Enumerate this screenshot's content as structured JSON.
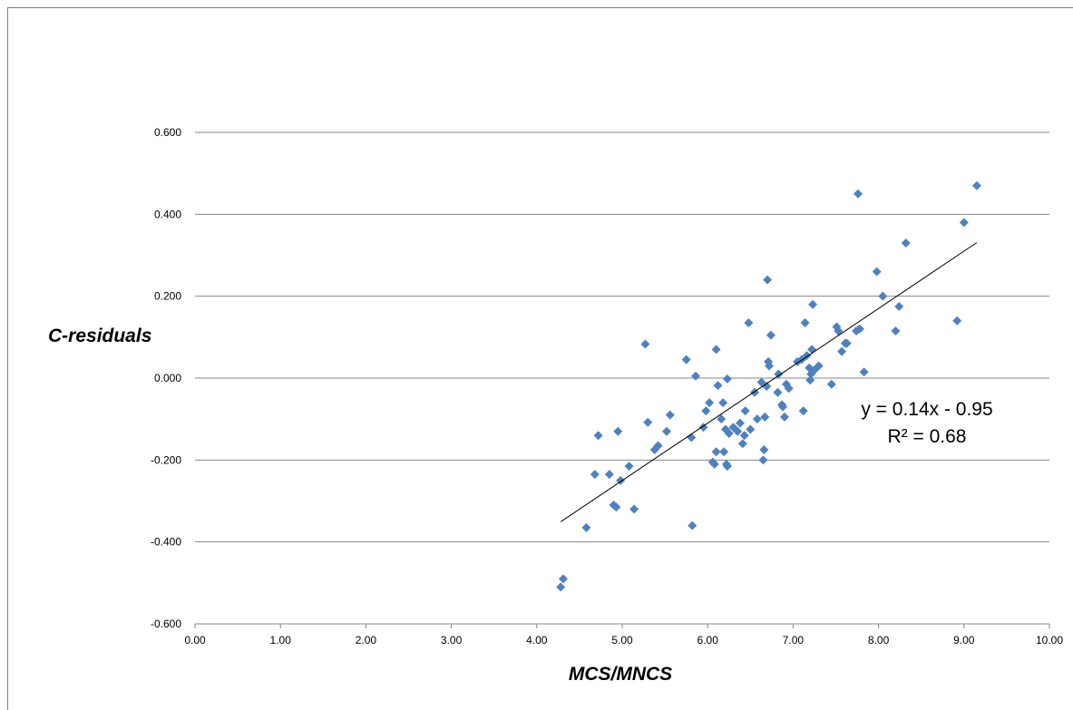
{
  "chart_data": {
    "type": "scatter",
    "xlabel": "MCS/MNCS",
    "ylabel": "C-residuals",
    "xlim": [
      0,
      10
    ],
    "ylim": [
      -0.6,
      0.6
    ],
    "x_ticks": [
      "0.00",
      "1.00",
      "2.00",
      "3.00",
      "4.00",
      "5.00",
      "6.00",
      "7.00",
      "8.00",
      "9.00",
      "10.00"
    ],
    "y_ticks": [
      "-0.600",
      "-0.400",
      "-0.200",
      "0.000",
      "0.200",
      "0.400",
      "0.600"
    ],
    "grid": "horizontal",
    "marker_color": "#4f81bd",
    "trendline": {
      "slope": 0.14,
      "intercept": -0.95,
      "x_range": [
        4.28,
        9.15
      ],
      "equation": "y = 0.14x - 0.95",
      "r_squared": "R² = 0.68"
    },
    "points": [
      [
        4.28,
        -0.51
      ],
      [
        4.31,
        -0.49
      ],
      [
        4.58,
        -0.365
      ],
      [
        4.68,
        -0.235
      ],
      [
        4.72,
        -0.14
      ],
      [
        4.85,
        -0.235
      ],
      [
        4.9,
        -0.31
      ],
      [
        4.93,
        -0.315
      ],
      [
        4.95,
        -0.13
      ],
      [
        4.98,
        -0.25
      ],
      [
        5.08,
        -0.215
      ],
      [
        5.14,
        -0.32
      ],
      [
        5.27,
        0.083
      ],
      [
        5.3,
        -0.108
      ],
      [
        5.38,
        -0.175
      ],
      [
        5.42,
        -0.165
      ],
      [
        5.52,
        -0.13
      ],
      [
        5.56,
        -0.09
      ],
      [
        5.75,
        0.045
      ],
      [
        5.81,
        -0.145
      ],
      [
        5.82,
        -0.36
      ],
      [
        5.86,
        0.005
      ],
      [
        5.95,
        -0.12
      ],
      [
        5.98,
        -0.08
      ],
      [
        6.02,
        -0.06
      ],
      [
        6.06,
        -0.205
      ],
      [
        6.08,
        -0.21
      ],
      [
        6.1,
        -0.18
      ],
      [
        6.1,
        0.07
      ],
      [
        6.12,
        -0.018
      ],
      [
        6.16,
        -0.1
      ],
      [
        6.18,
        -0.06
      ],
      [
        6.19,
        -0.18
      ],
      [
        6.21,
        -0.125
      ],
      [
        6.22,
        -0.21
      ],
      [
        6.23,
        -0.215
      ],
      [
        6.23,
        -0.002
      ],
      [
        6.25,
        -0.135
      ],
      [
        6.3,
        -0.12
      ],
      [
        6.35,
        -0.13
      ],
      [
        6.38,
        -0.11
      ],
      [
        6.41,
        -0.16
      ],
      [
        6.43,
        -0.14
      ],
      [
        6.44,
        -0.08
      ],
      [
        6.48,
        0.135
      ],
      [
        6.5,
        -0.125
      ],
      [
        6.55,
        -0.035
      ],
      [
        6.58,
        -0.1
      ],
      [
        6.63,
        -0.01
      ],
      [
        6.65,
        -0.2
      ],
      [
        6.66,
        -0.175
      ],
      [
        6.67,
        -0.095
      ],
      [
        6.69,
        -0.02
      ],
      [
        6.7,
        0.24
      ],
      [
        6.71,
        0.04
      ],
      [
        6.72,
        0.03
      ],
      [
        6.74,
        0.105
      ],
      [
        6.82,
        -0.035
      ],
      [
        6.83,
        0.01
      ],
      [
        6.87,
        -0.065
      ],
      [
        6.88,
        -0.07
      ],
      [
        6.9,
        -0.095
      ],
      [
        6.92,
        -0.015
      ],
      [
        6.95,
        -0.025
      ],
      [
        7.05,
        0.04
      ],
      [
        7.1,
        0.045
      ],
      [
        7.12,
        -0.08
      ],
      [
        7.14,
        0.135
      ],
      [
        7.16,
        0.055
      ],
      [
        7.19,
        0.025
      ],
      [
        7.2,
        -0.005
      ],
      [
        7.21,
        0.01
      ],
      [
        7.22,
        0.07
      ],
      [
        7.23,
        0.18
      ],
      [
        7.25,
        0.02
      ],
      [
        7.3,
        0.03
      ],
      [
        7.45,
        -0.015
      ],
      [
        7.51,
        0.125
      ],
      [
        7.53,
        0.115
      ],
      [
        7.57,
        0.065
      ],
      [
        7.61,
        0.085
      ],
      [
        7.63,
        0.085
      ],
      [
        7.74,
        0.115
      ],
      [
        7.76,
        0.45
      ],
      [
        7.78,
        0.12
      ],
      [
        7.83,
        0.015
      ],
      [
        7.98,
        0.26
      ],
      [
        8.05,
        0.2
      ],
      [
        8.2,
        0.115
      ],
      [
        8.24,
        0.175
      ],
      [
        8.32,
        0.33
      ],
      [
        8.92,
        0.14
      ],
      [
        9.0,
        0.38
      ],
      [
        9.15,
        0.47
      ]
    ]
  }
}
